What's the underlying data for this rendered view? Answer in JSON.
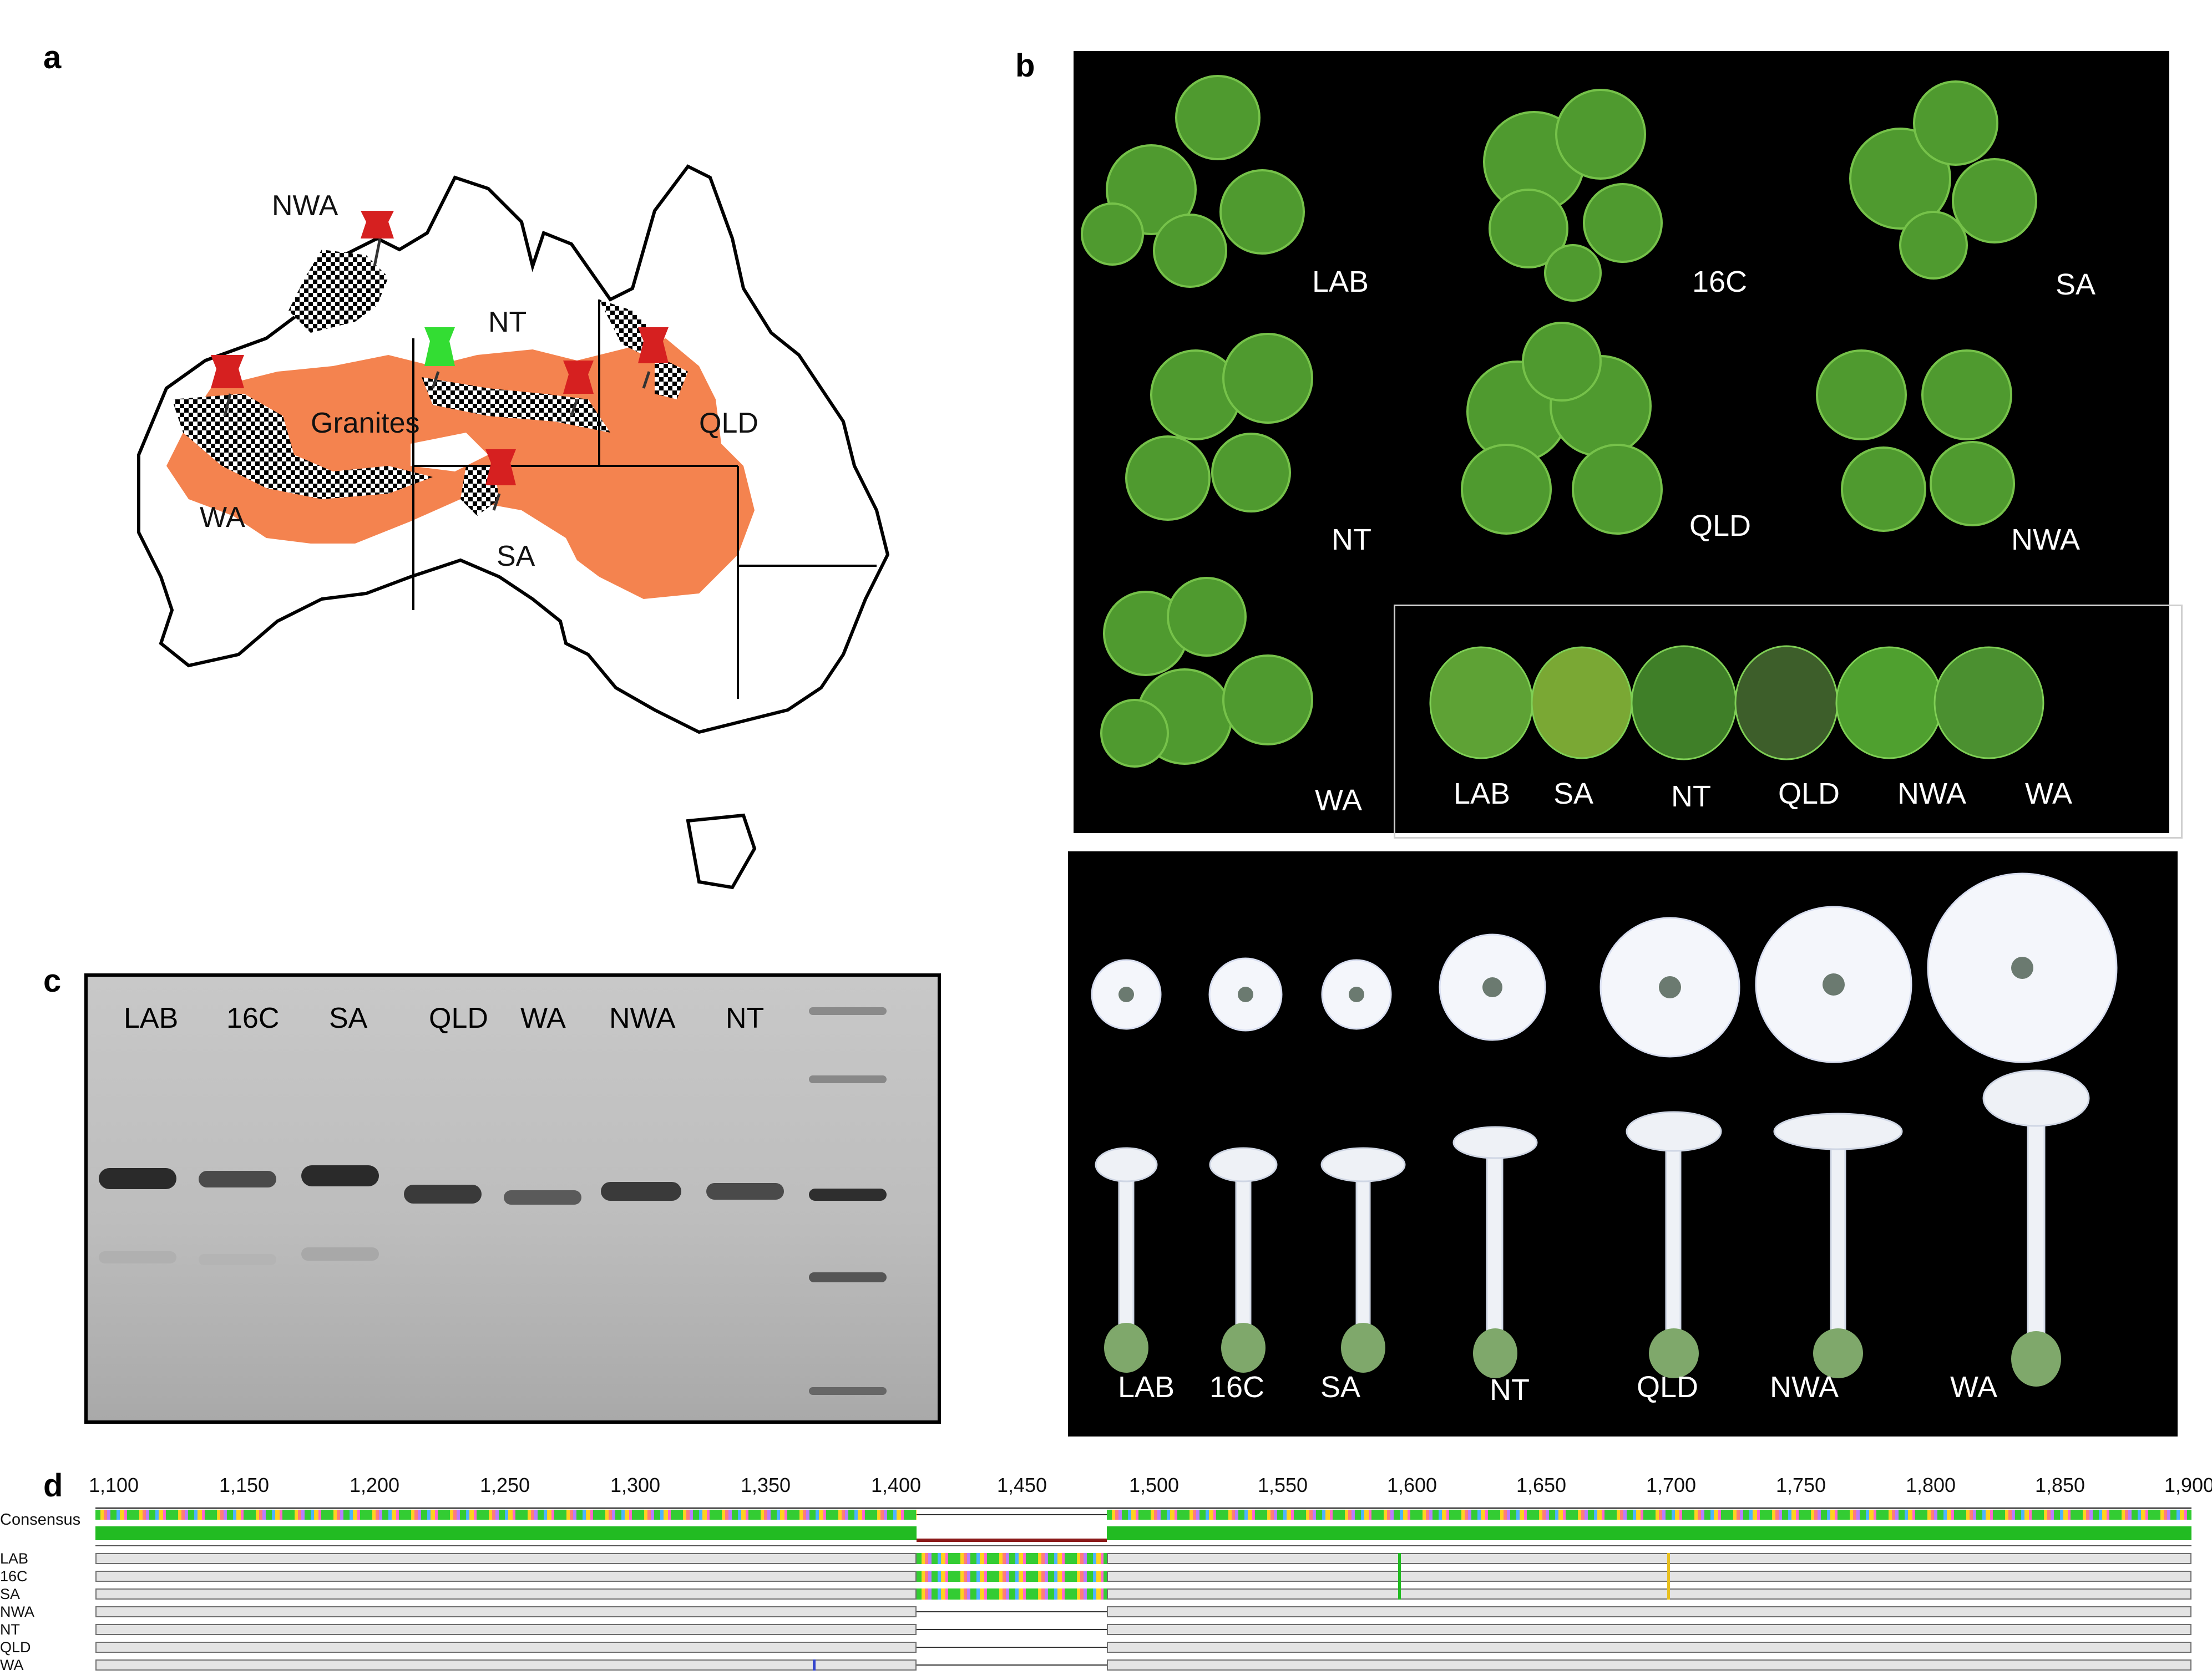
{
  "panels": {
    "a": {
      "letter": "a",
      "labels": {
        "nwa": "NWA",
        "nt": "NT",
        "granites": "Granites",
        "qld": "QLD",
        "wa": "WA",
        "sa": "SA"
      },
      "colors": {
        "range": "#f4834f",
        "pin": "#d62020",
        "pin_green": "#33dd33",
        "checker": "#000000"
      }
    },
    "b": {
      "letter": "b",
      "plants": [
        "LAB",
        "16C",
        "SA",
        "NT",
        "QLD",
        "NWA",
        "WA"
      ],
      "leaves": [
        "LAB",
        "SA",
        "NT",
        "QLD",
        "NWA",
        "WA"
      ],
      "flowers": [
        "LAB",
        "16C",
        "SA",
        "NT",
        "QLD",
        "NWA",
        "WA"
      ]
    },
    "c": {
      "letter": "c",
      "lanes": [
        "LAB",
        "16C",
        "SA",
        "QLD",
        "WA",
        "NWA",
        "NT"
      ]
    },
    "d": {
      "letter": "d",
      "ruler": [
        "1,100",
        "1,150",
        "1,200",
        "1,250",
        "1,300",
        "1,350",
        "1,400",
        "1,450",
        "1,500",
        "1,550",
        "1,600",
        "1,650",
        "1,700",
        "1,750",
        "1,800",
        "1,850",
        "1,900"
      ],
      "consensus_label": "Consensus",
      "sequences": [
        "LAB",
        "16C",
        "SA",
        "NWA",
        "NT",
        "QLD",
        "WA"
      ],
      "colors": {
        "identity": "#22bb22",
        "gap_bar": "#8b1a1a",
        "track": "#e4e4e4"
      }
    }
  }
}
